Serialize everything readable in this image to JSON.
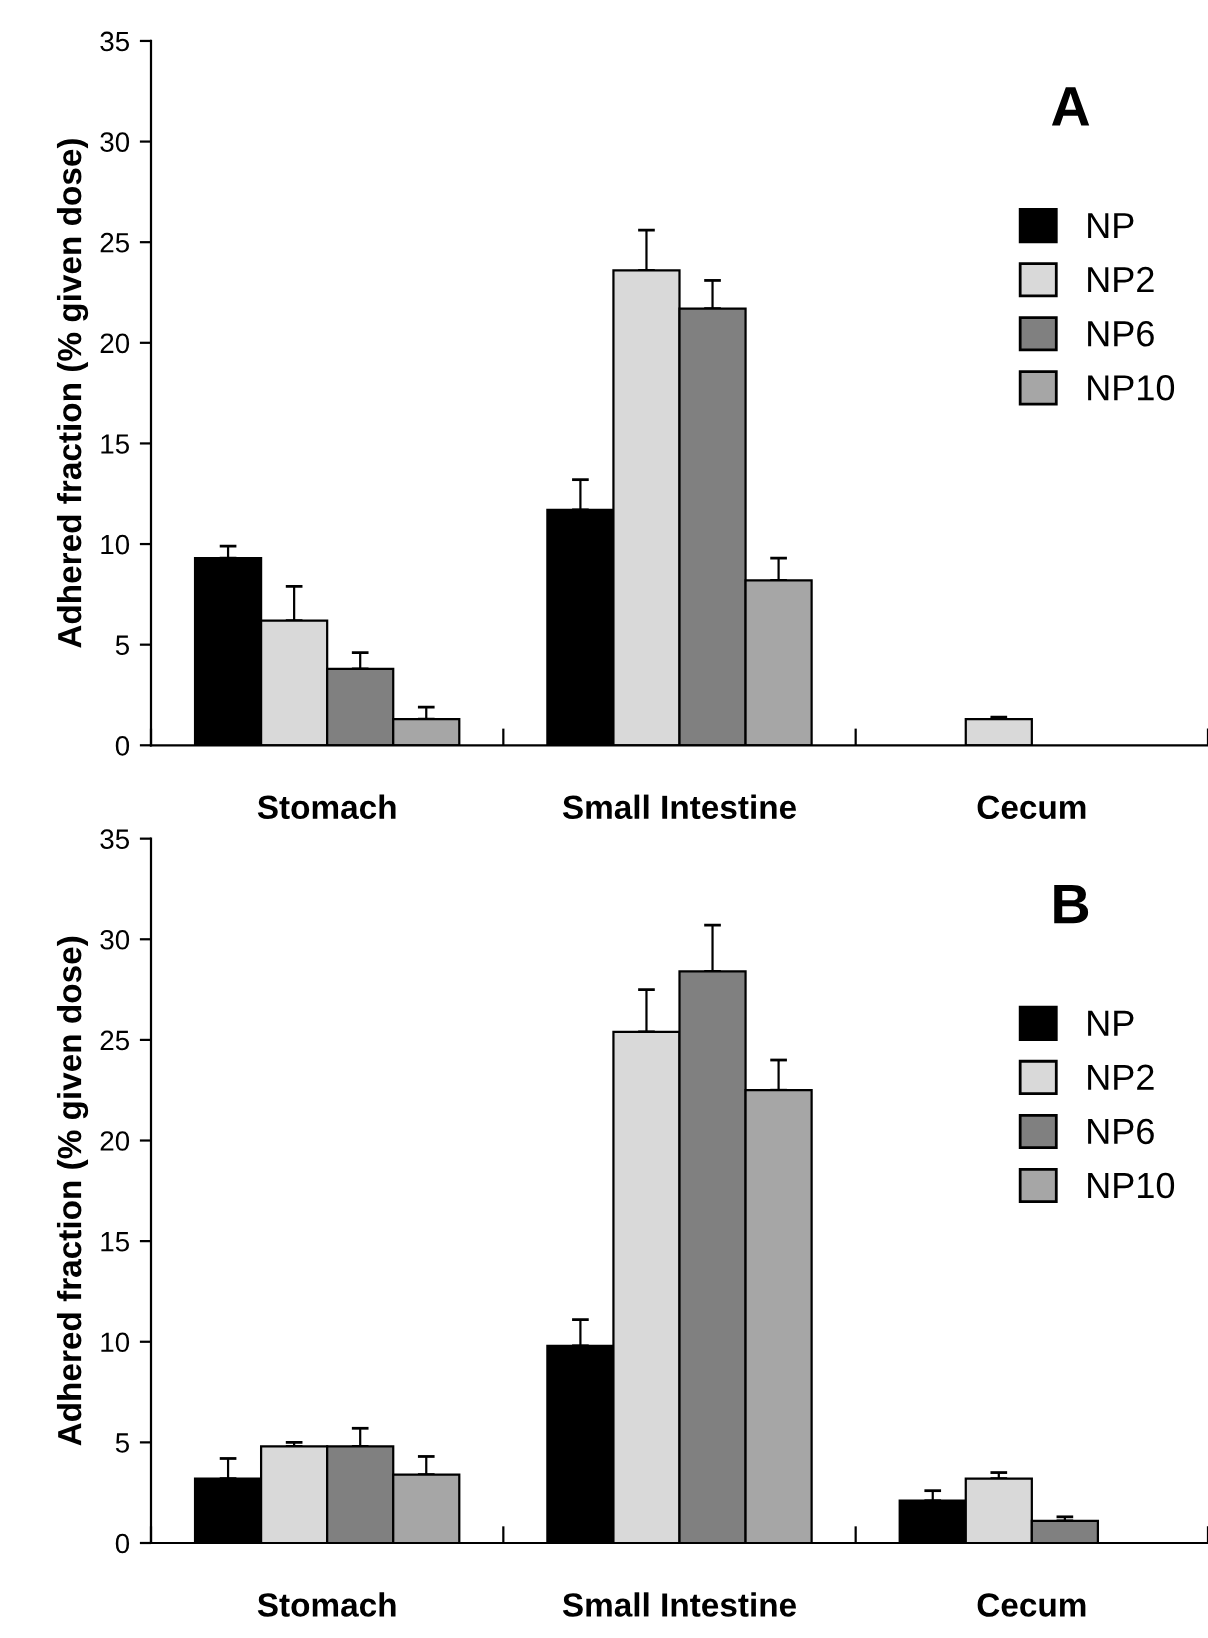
{
  "chart_data": [
    {
      "type": "bar",
      "title": "A",
      "ylabel": "Adhered fraction (% given dose)",
      "categories": [
        "Stomach",
        "Small Intestine",
        "Cecum"
      ],
      "ylim": [
        0,
        35
      ],
      "yticks": [
        0,
        5,
        10,
        15,
        20,
        25,
        30,
        35
      ],
      "legend": "right",
      "grid": false,
      "series": [
        {
          "name": "NP",
          "color": "#000000",
          "values": [
            9.3,
            11.7,
            null
          ],
          "errors": [
            [
              9.3,
              9.9
            ],
            [
              11.7,
              13.2
            ],
            null
          ]
        },
        {
          "name": "NP2",
          "color": "#d9d9d9",
          "values": [
            6.2,
            23.6,
            1.3
          ],
          "errors": [
            [
              6.2,
              7.9
            ],
            [
              23.6,
              25.6
            ],
            [
              1.3,
              1.4
            ]
          ]
        },
        {
          "name": "NP6",
          "color": "#808080",
          "values": [
            3.8,
            21.7,
            null
          ],
          "errors": [
            [
              3.8,
              4.6
            ],
            [
              21.7,
              23.1
            ],
            null
          ]
        },
        {
          "name": "NP10",
          "color": "#a6a6a6",
          "values": [
            1.3,
            8.2,
            null
          ],
          "errors": [
            [
              1.3,
              1.9
            ],
            [
              8.2,
              9.3
            ],
            null
          ]
        }
      ]
    },
    {
      "type": "bar",
      "title": "B",
      "ylabel": "Adhered fraction (% given dose)",
      "categories": [
        "Stomach",
        "Small Intestine",
        "Cecum"
      ],
      "ylim": [
        0,
        35
      ],
      "yticks": [
        0,
        5,
        10,
        15,
        20,
        25,
        30,
        35
      ],
      "legend": "right",
      "grid": false,
      "series": [
        {
          "name": "NP",
          "color": "#000000",
          "values": [
            3.2,
            9.8,
            2.1
          ],
          "errors": [
            [
              3.2,
              4.2
            ],
            [
              9.8,
              11.1
            ],
            [
              2.1,
              2.6
            ]
          ]
        },
        {
          "name": "NP2",
          "color": "#d9d9d9",
          "values": [
            4.8,
            25.4,
            3.2
          ],
          "errors": [
            [
              4.8,
              5.0
            ],
            [
              25.4,
              27.5
            ],
            [
              3.2,
              3.5
            ]
          ]
        },
        {
          "name": "NP6",
          "color": "#808080",
          "values": [
            4.8,
            28.4,
            1.1
          ],
          "errors": [
            [
              4.8,
              5.7
            ],
            [
              28.4,
              30.7
            ],
            [
              1.1,
              1.3
            ]
          ]
        },
        {
          "name": "NP10",
          "color": "#a6a6a6",
          "values": [
            3.4,
            22.5,
            null
          ],
          "errors": [
            [
              3.4,
              4.3
            ],
            [
              22.5,
              24.0
            ],
            null
          ]
        }
      ]
    }
  ]
}
